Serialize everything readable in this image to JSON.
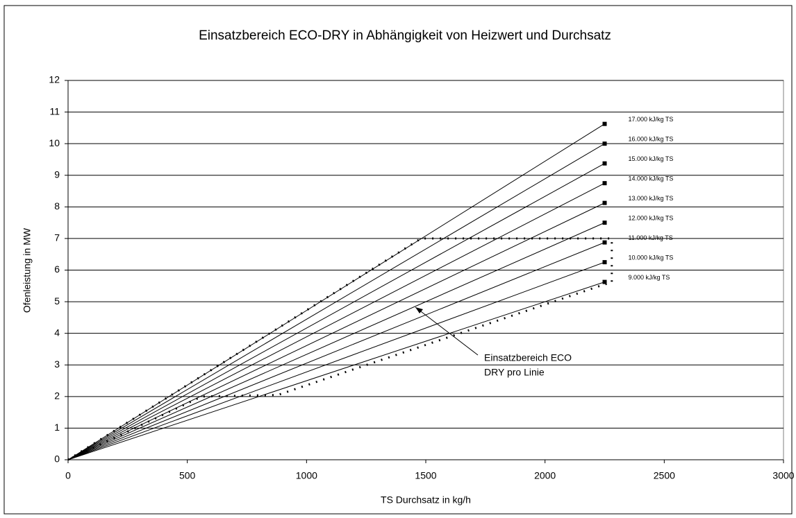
{
  "chart_data": {
    "type": "line",
    "title": "Einsatzbereich ECO-DRY in Abhängigkeit von Heizwert und Durchsatz",
    "x_label": "TS Durchsatz in kg/h",
    "y_label": "Ofenleistung in MW",
    "xlim": [
      0,
      3000
    ],
    "xticks": [
      0,
      500,
      1000,
      1500,
      2000,
      2500,
      3000
    ],
    "ylim": [
      0,
      12
    ],
    "yticks": [
      0,
      1,
      2,
      3,
      4,
      5,
      6,
      7,
      8,
      9,
      10,
      11,
      12
    ],
    "grid": true,
    "series": [
      {
        "name": "17.000 kJ/kg TS",
        "color": "#000000",
        "x": [
          0,
          2250
        ],
        "values": [
          0,
          10.625
        ]
      },
      {
        "name": "16.000 kJ/kg TS",
        "color": "#000000",
        "x": [
          0,
          2250
        ],
        "values": [
          0,
          10.0
        ]
      },
      {
        "name": "15.000 kJ/kg TS",
        "color": "#000000",
        "x": [
          0,
          2250
        ],
        "values": [
          0,
          9.375
        ]
      },
      {
        "name": "14.000 kJ/kg TS",
        "color": "#000000",
        "x": [
          0,
          2250
        ],
        "values": [
          0,
          8.75
        ]
      },
      {
        "name": "13.000 kJ/kg TS",
        "color": "#000000",
        "x": [
          0,
          2250
        ],
        "values": [
          0,
          8.125
        ]
      },
      {
        "name": "12.000 kJ/kg TS",
        "color": "#000000",
        "x": [
          0,
          2250
        ],
        "values": [
          0,
          7.5
        ]
      },
      {
        "name": "11.000 kJ/kg TS",
        "color": "#000000",
        "x": [
          0,
          2250
        ],
        "values": [
          0,
          6.875
        ]
      },
      {
        "name": "10.000 kJ/kg TS",
        "color": "#000000",
        "x": [
          0,
          2250
        ],
        "values": [
          0,
          6.25
        ]
      },
      {
        "name": "9.000 kJ/kg TS",
        "color": "#000000",
        "x": [
          0,
          2250
        ],
        "values": [
          0,
          5.625
        ]
      }
    ],
    "boundary": {
      "color": "#000000",
      "x": [
        0,
        1480,
        2250,
        2280,
        2280,
        2250,
        880,
        560,
        0
      ],
      "values": [
        0,
        7,
        7,
        7,
        5.6,
        5.55,
        2.05,
        2,
        0
      ]
    },
    "annotation": [
      "Einsatzbereich ECO",
      "DRY pro Linie"
    ]
  }
}
